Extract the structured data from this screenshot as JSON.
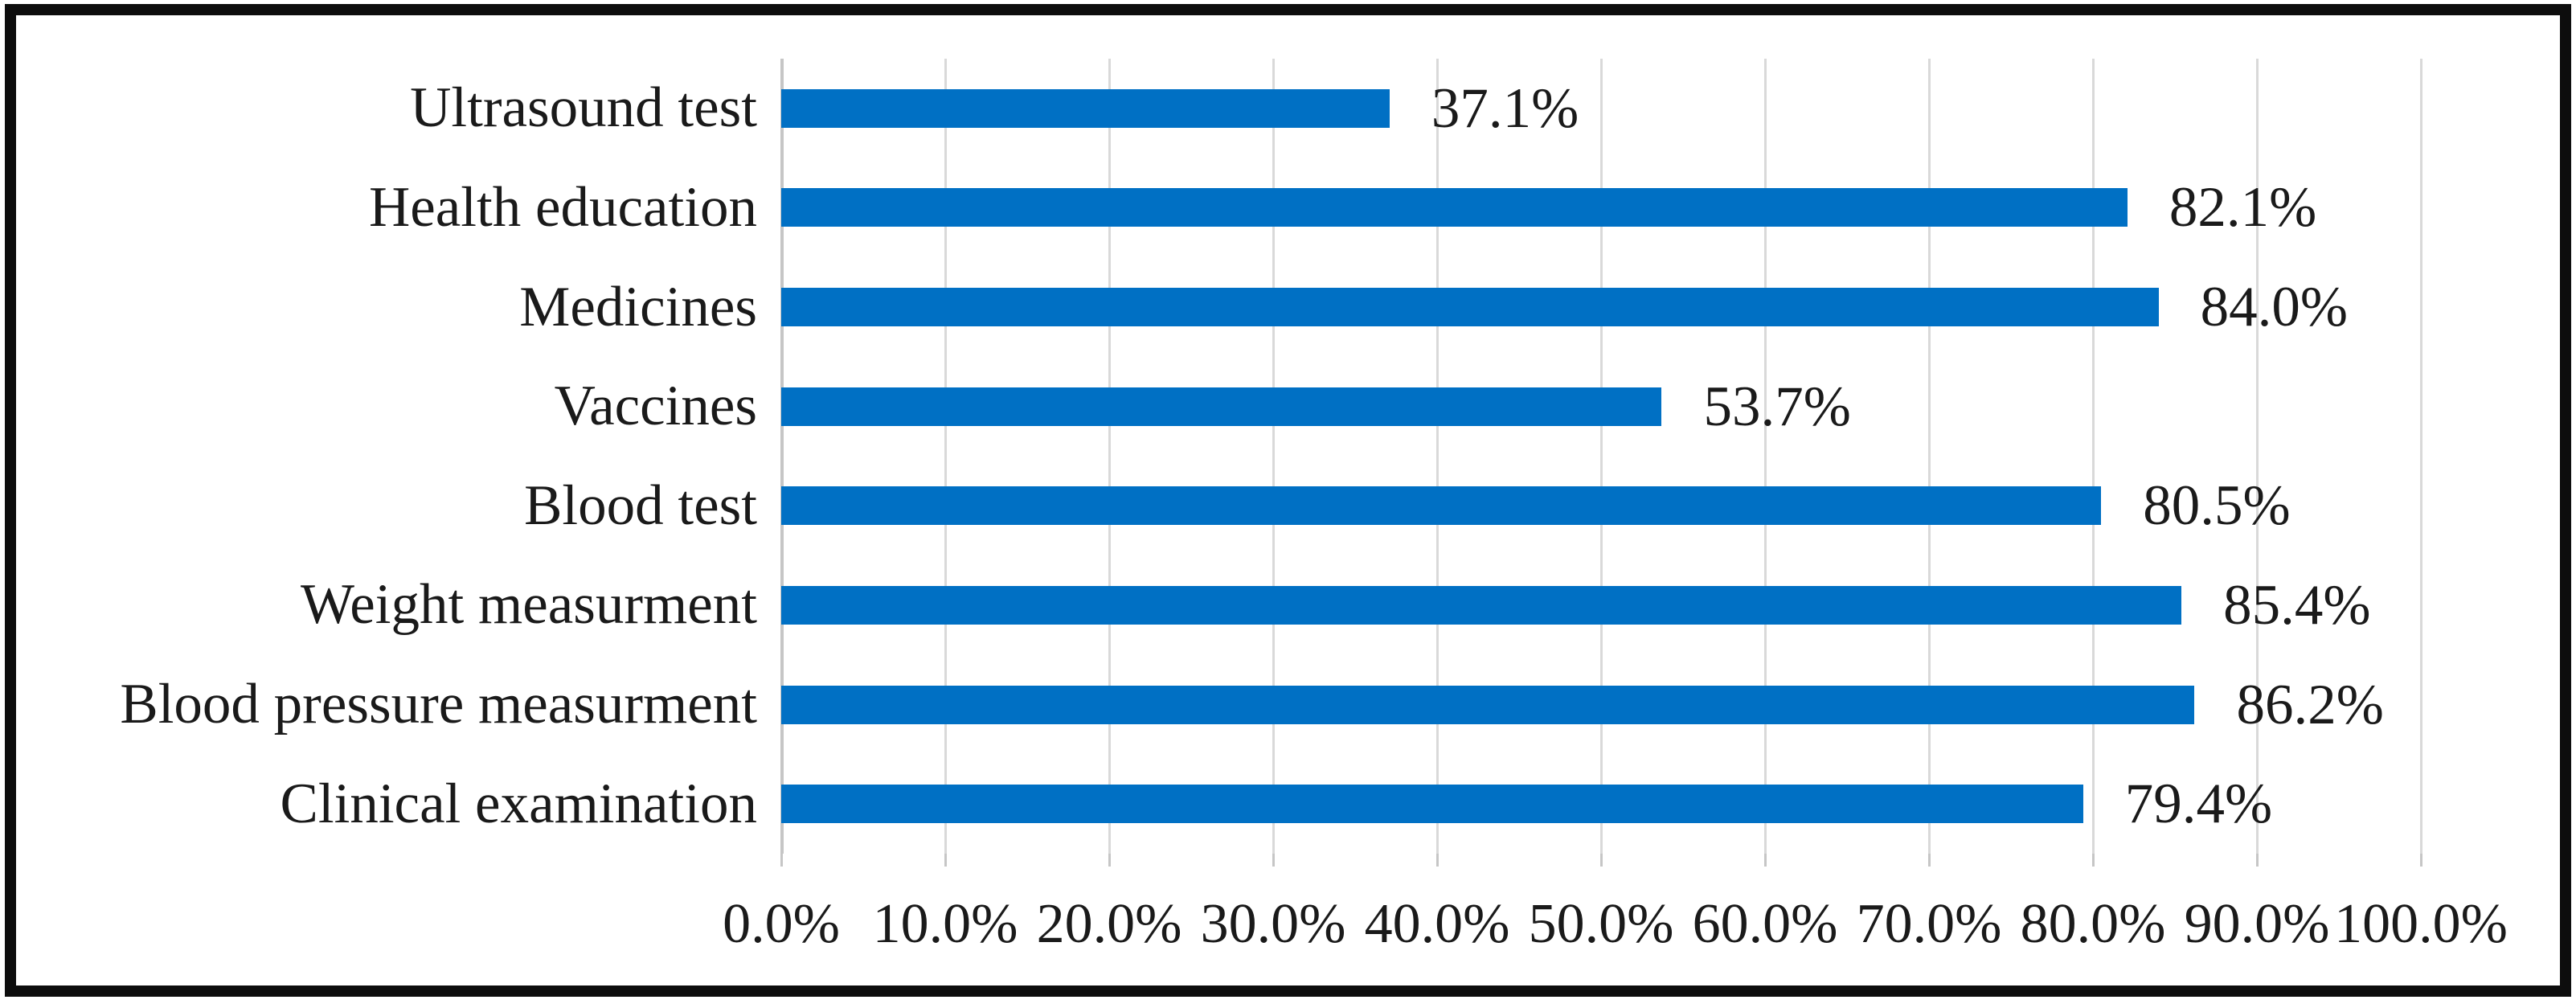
{
  "chart_data": {
    "type": "bar",
    "orientation": "horizontal",
    "title": "",
    "xlabel": "",
    "ylabel": "",
    "categories": [
      "Ultrasound test",
      "Health education",
      "Medicines",
      "Vaccines",
      "Blood test",
      "Weight measurment",
      "Blood pressure measurment",
      "Clinical examination"
    ],
    "values": [
      37.1,
      82.1,
      84.0,
      53.7,
      80.5,
      85.4,
      86.2,
      79.4
    ],
    "value_labels": [
      "37.1%",
      "82.1%",
      "84.0%",
      "53.7%",
      "80.5%",
      "85.4%",
      "86.2%",
      "79.4%"
    ],
    "x_tick_labels": [
      "0.0%",
      "10.0%",
      "20.0%",
      "30.0%",
      "40.0%",
      "50.0%",
      "60.0%",
      "70.0%",
      "80.0%",
      "90.0%",
      "100.0%"
    ],
    "xlim": [
      0,
      100
    ],
    "grid": "vertical gridlines every 10%",
    "legend": "none",
    "colors": {
      "bar": "#0070c4",
      "gridline": "#d9d9d9",
      "axis_line": "#c6c6c6",
      "text": "#1a1a1a",
      "frame_border": "#0d0d0d",
      "background": "#ffffff"
    }
  }
}
